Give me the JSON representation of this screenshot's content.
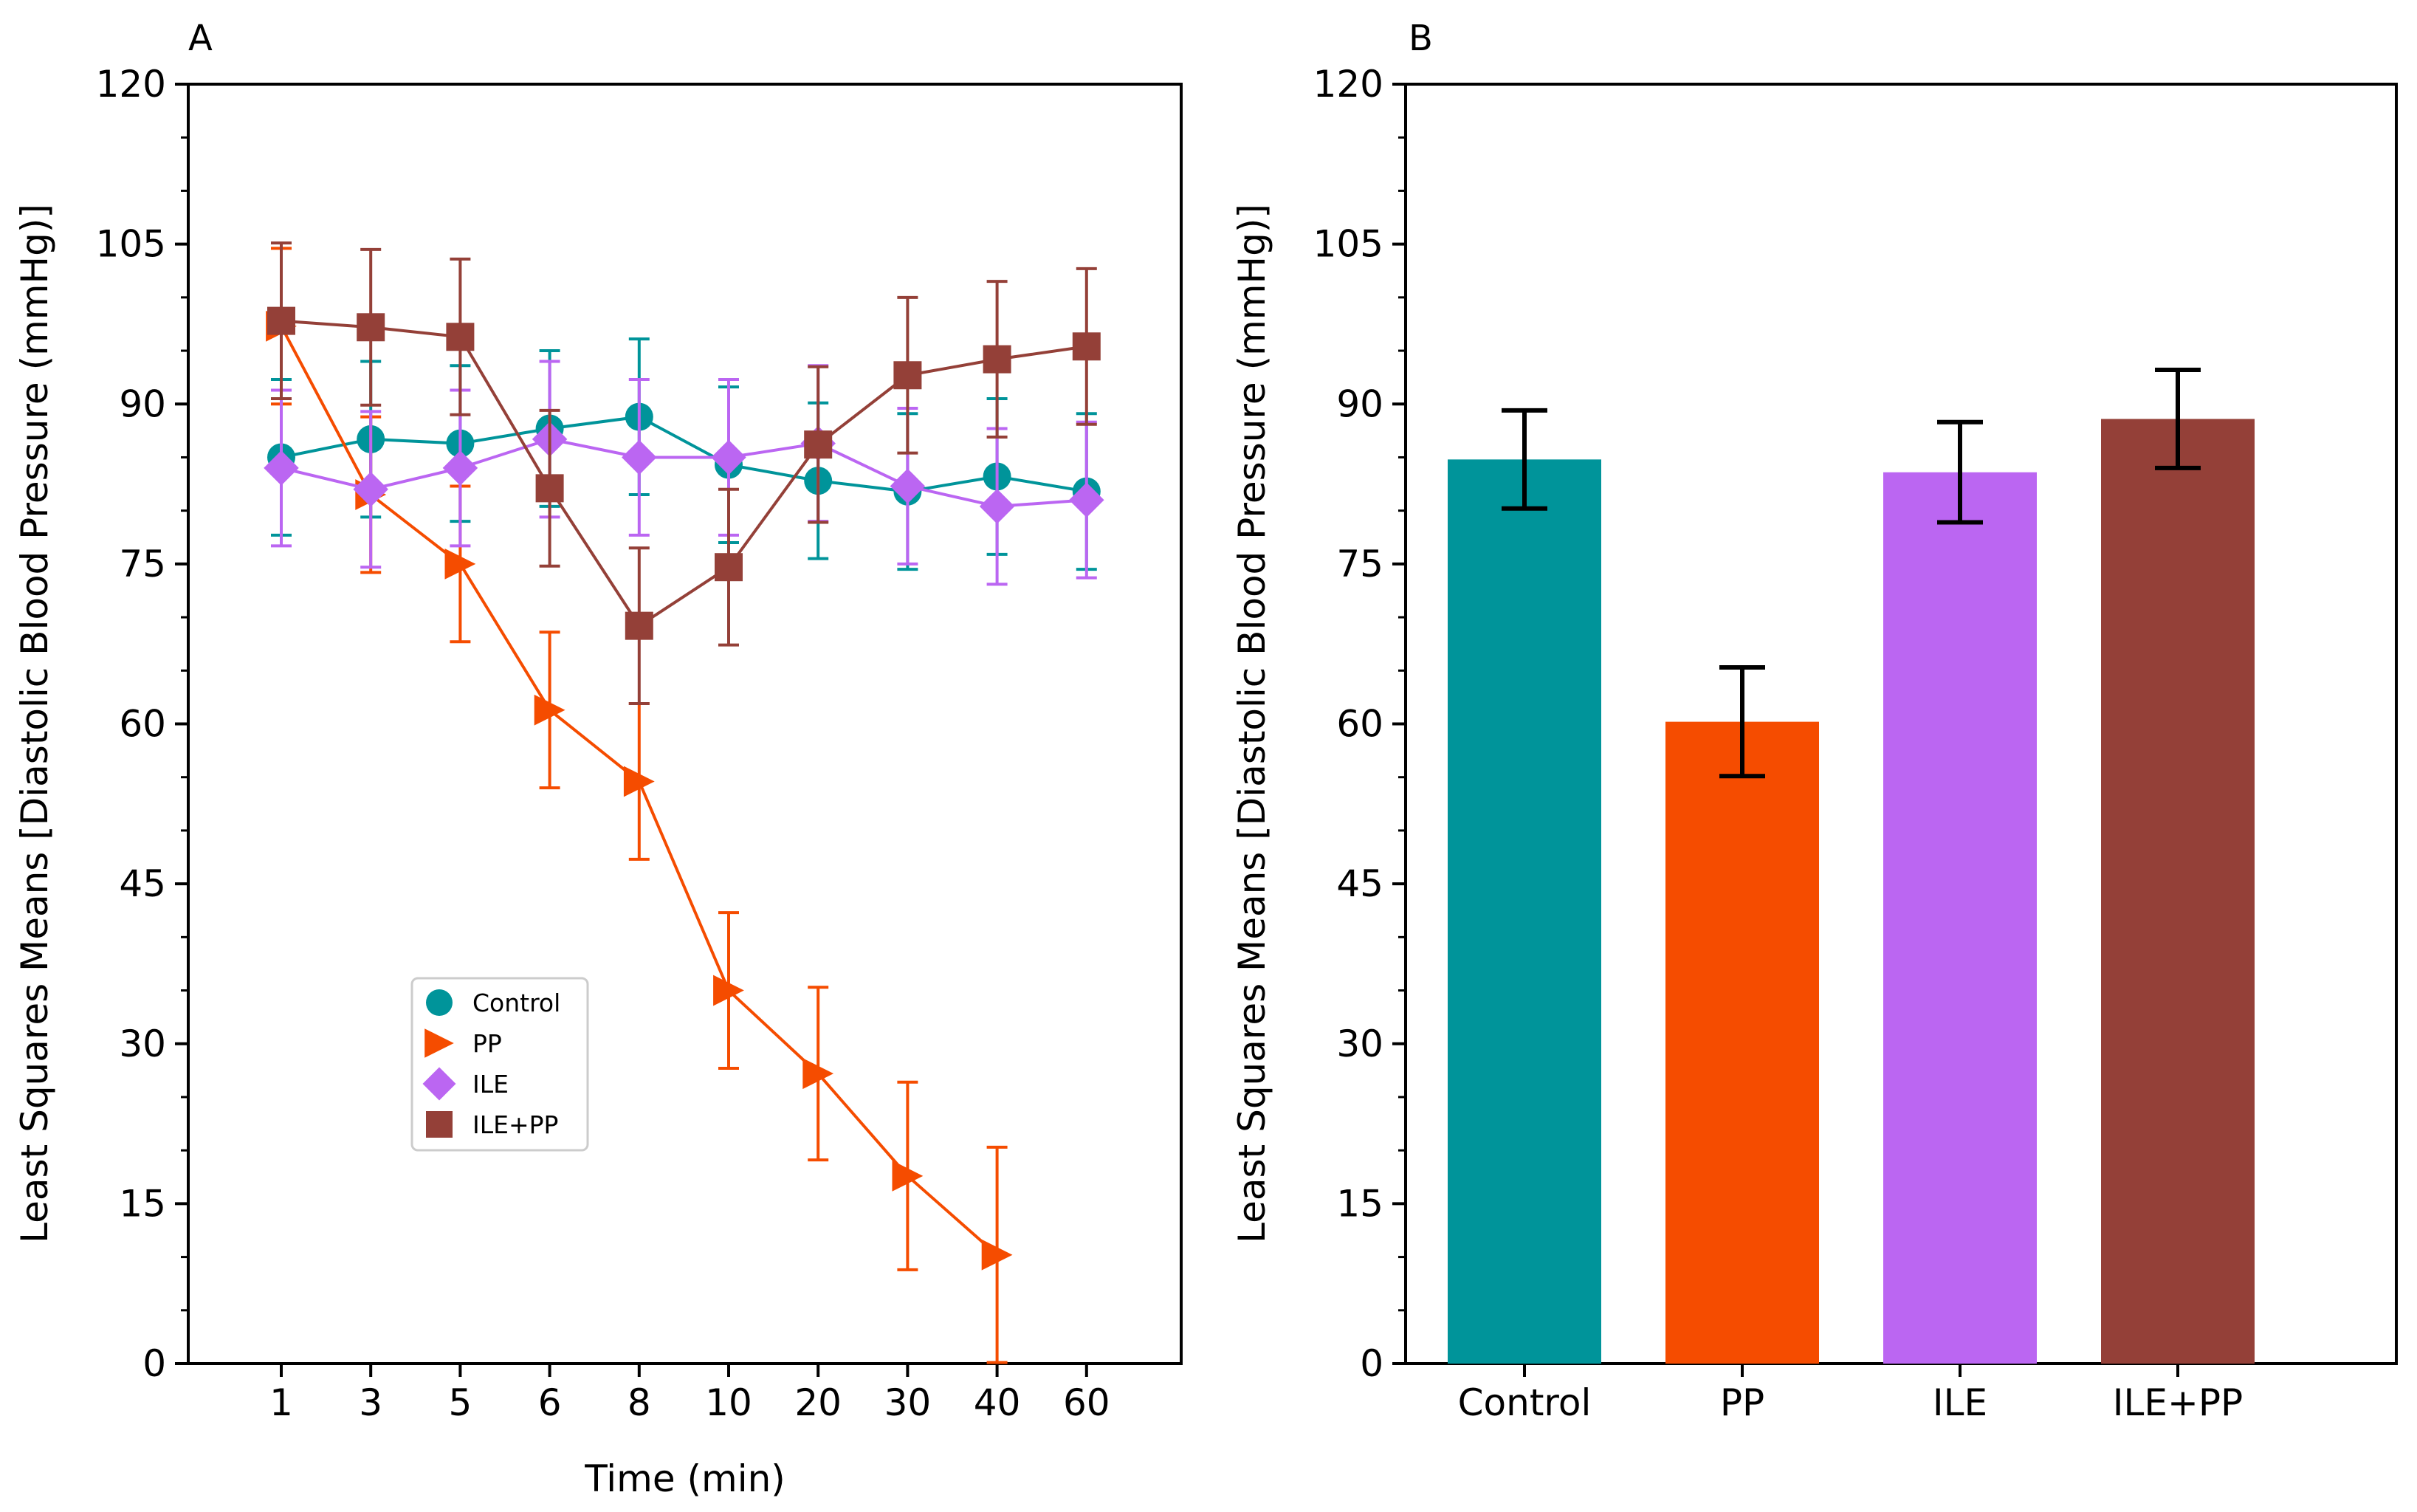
{
  "chart_data": [
    {
      "panel_label": "A",
      "type": "line",
      "xlabel": "Time (min)",
      "ylabel": "Least Squares Means [Diastolic Blood Pressure (mmHg)]",
      "categories": [
        "1",
        "3",
        "5",
        "6",
        "8",
        "10",
        "20",
        "30",
        "40",
        "60"
      ],
      "ylim": [
        0,
        120
      ],
      "yticks": [
        "0",
        "15",
        "30",
        "45",
        "60",
        "75",
        "90",
        "105",
        "120"
      ],
      "legend_position": "lower-center",
      "series": [
        {
          "name": "Control",
          "color": "#00949A",
          "marker": "circle",
          "values": [
            85,
            86.7,
            86.3,
            87.7,
            88.8,
            84.3,
            82.8,
            81.8,
            83.2,
            81.8
          ],
          "errors": [
            7.3,
            7.3,
            7.3,
            7.3,
            7.3,
            7.3,
            7.3,
            7.3,
            7.3,
            7.3
          ]
        },
        {
          "name": "PP",
          "color": "#F54C00",
          "marker": "triangle-right",
          "values": [
            97.3,
            81.5,
            75,
            61.3,
            54.6,
            35,
            27.2,
            17.6,
            10.2,
            null
          ],
          "errors": [
            7.3,
            7.3,
            7.3,
            7.3,
            7.3,
            7.3,
            8.1,
            8.8,
            10.1,
            null
          ]
        },
        {
          "name": "ILE",
          "color": "#BB66F2",
          "marker": "diamond",
          "values": [
            84,
            82,
            84,
            86.7,
            85,
            85,
            86.3,
            82.3,
            80.4,
            81
          ],
          "errors": [
            7.3,
            7.3,
            7.3,
            7.3,
            7.3,
            7.3,
            7.3,
            7.3,
            7.3,
            7.3
          ]
        },
        {
          "name": "ILE+PP",
          "color": "#944038",
          "marker": "square",
          "values": [
            97.8,
            97.2,
            96.3,
            82.1,
            69.2,
            74.7,
            86.2,
            92.7,
            94.2,
            95.4
          ],
          "errors": [
            7.3,
            7.3,
            7.3,
            7.3,
            7.3,
            7.3,
            7.3,
            7.3,
            7.3,
            7.3
          ]
        }
      ]
    },
    {
      "panel_label": "B",
      "type": "bar",
      "xlabel": "",
      "ylabel": "Least Squares Means [Diastolic Blood Pressure (mmHg)]",
      "categories": [
        "Control",
        "PP",
        "ILE",
        "ILE+PP"
      ],
      "values": [
        84.8,
        60.2,
        83.6,
        88.6
      ],
      "errors": [
        4.6,
        5.1,
        4.7,
        4.6
      ],
      "colors": [
        "#00949A",
        "#F54C00",
        "#BB66F2",
        "#944038"
      ],
      "ylim": [
        0,
        120
      ],
      "yticks": [
        "0",
        "15",
        "30",
        "45",
        "60",
        "75",
        "90",
        "105",
        "120"
      ]
    }
  ]
}
